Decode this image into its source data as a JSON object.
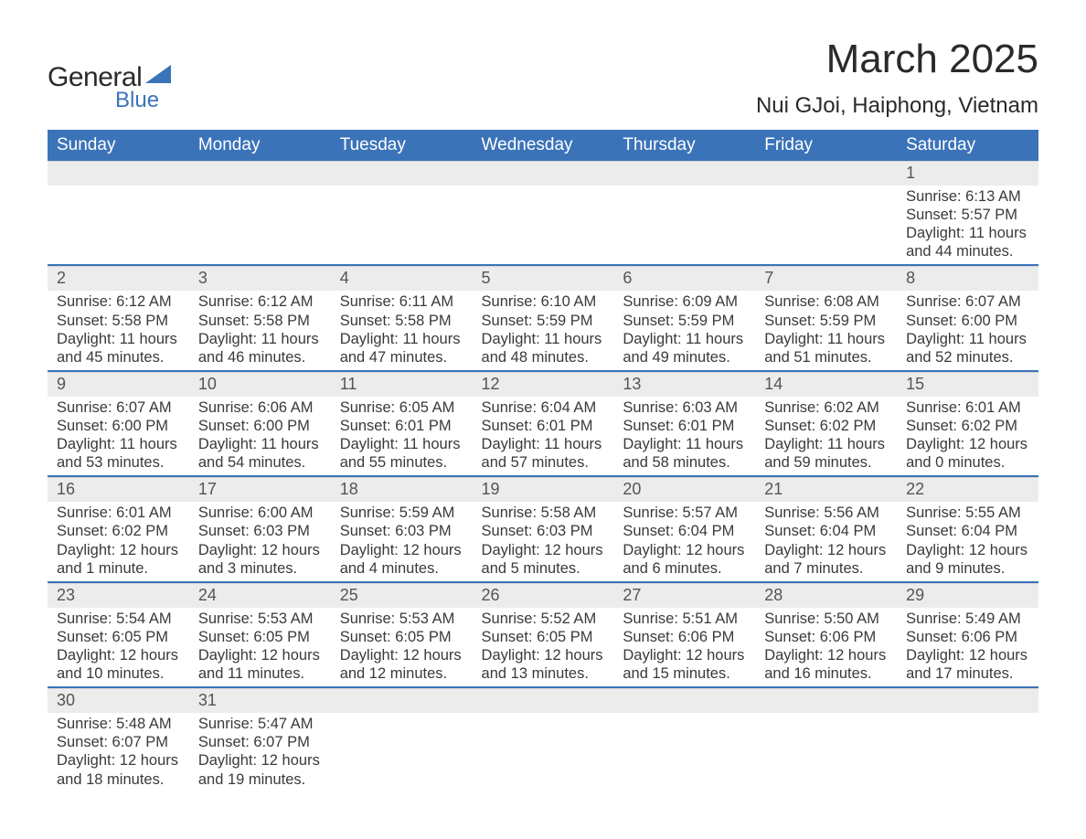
{
  "logo": {
    "text1": "General",
    "text2": "Blue",
    "accent_color": "#3b73b9"
  },
  "header": {
    "title": "March 2025",
    "location": "Nui GJoi, Haiphong, Vietnam"
  },
  "colors": {
    "header_bg": "#3b73b9",
    "header_text": "#ffffff",
    "daynum_bg": "#ececec",
    "row_border": "#3b73b9",
    "body_text": "#3a3a3a"
  },
  "weekdays": [
    "Sunday",
    "Monday",
    "Tuesday",
    "Wednesday",
    "Thursday",
    "Friday",
    "Saturday"
  ],
  "weeks": [
    [
      null,
      null,
      null,
      null,
      null,
      null,
      {
        "n": "1",
        "sunrise": "Sunrise: 6:13 AM",
        "sunset": "Sunset: 5:57 PM",
        "daylight": "Daylight: 11 hours and 44 minutes."
      }
    ],
    [
      {
        "n": "2",
        "sunrise": "Sunrise: 6:12 AM",
        "sunset": "Sunset: 5:58 PM",
        "daylight": "Daylight: 11 hours and 45 minutes."
      },
      {
        "n": "3",
        "sunrise": "Sunrise: 6:12 AM",
        "sunset": "Sunset: 5:58 PM",
        "daylight": "Daylight: 11 hours and 46 minutes."
      },
      {
        "n": "4",
        "sunrise": "Sunrise: 6:11 AM",
        "sunset": "Sunset: 5:58 PM",
        "daylight": "Daylight: 11 hours and 47 minutes."
      },
      {
        "n": "5",
        "sunrise": "Sunrise: 6:10 AM",
        "sunset": "Sunset: 5:59 PM",
        "daylight": "Daylight: 11 hours and 48 minutes."
      },
      {
        "n": "6",
        "sunrise": "Sunrise: 6:09 AM",
        "sunset": "Sunset: 5:59 PM",
        "daylight": "Daylight: 11 hours and 49 minutes."
      },
      {
        "n": "7",
        "sunrise": "Sunrise: 6:08 AM",
        "sunset": "Sunset: 5:59 PM",
        "daylight": "Daylight: 11 hours and 51 minutes."
      },
      {
        "n": "8",
        "sunrise": "Sunrise: 6:07 AM",
        "sunset": "Sunset: 6:00 PM",
        "daylight": "Daylight: 11 hours and 52 minutes."
      }
    ],
    [
      {
        "n": "9",
        "sunrise": "Sunrise: 6:07 AM",
        "sunset": "Sunset: 6:00 PM",
        "daylight": "Daylight: 11 hours and 53 minutes."
      },
      {
        "n": "10",
        "sunrise": "Sunrise: 6:06 AM",
        "sunset": "Sunset: 6:00 PM",
        "daylight": "Daylight: 11 hours and 54 minutes."
      },
      {
        "n": "11",
        "sunrise": "Sunrise: 6:05 AM",
        "sunset": "Sunset: 6:01 PM",
        "daylight": "Daylight: 11 hours and 55 minutes."
      },
      {
        "n": "12",
        "sunrise": "Sunrise: 6:04 AM",
        "sunset": "Sunset: 6:01 PM",
        "daylight": "Daylight: 11 hours and 57 minutes."
      },
      {
        "n": "13",
        "sunrise": "Sunrise: 6:03 AM",
        "sunset": "Sunset: 6:01 PM",
        "daylight": "Daylight: 11 hours and 58 minutes."
      },
      {
        "n": "14",
        "sunrise": "Sunrise: 6:02 AM",
        "sunset": "Sunset: 6:02 PM",
        "daylight": "Daylight: 11 hours and 59 minutes."
      },
      {
        "n": "15",
        "sunrise": "Sunrise: 6:01 AM",
        "sunset": "Sunset: 6:02 PM",
        "daylight": "Daylight: 12 hours and 0 minutes."
      }
    ],
    [
      {
        "n": "16",
        "sunrise": "Sunrise: 6:01 AM",
        "sunset": "Sunset: 6:02 PM",
        "daylight": "Daylight: 12 hours and 1 minute."
      },
      {
        "n": "17",
        "sunrise": "Sunrise: 6:00 AM",
        "sunset": "Sunset: 6:03 PM",
        "daylight": "Daylight: 12 hours and 3 minutes."
      },
      {
        "n": "18",
        "sunrise": "Sunrise: 5:59 AM",
        "sunset": "Sunset: 6:03 PM",
        "daylight": "Daylight: 12 hours and 4 minutes."
      },
      {
        "n": "19",
        "sunrise": "Sunrise: 5:58 AM",
        "sunset": "Sunset: 6:03 PM",
        "daylight": "Daylight: 12 hours and 5 minutes."
      },
      {
        "n": "20",
        "sunrise": "Sunrise: 5:57 AM",
        "sunset": "Sunset: 6:04 PM",
        "daylight": "Daylight: 12 hours and 6 minutes."
      },
      {
        "n": "21",
        "sunrise": "Sunrise: 5:56 AM",
        "sunset": "Sunset: 6:04 PM",
        "daylight": "Daylight: 12 hours and 7 minutes."
      },
      {
        "n": "22",
        "sunrise": "Sunrise: 5:55 AM",
        "sunset": "Sunset: 6:04 PM",
        "daylight": "Daylight: 12 hours and 9 minutes."
      }
    ],
    [
      {
        "n": "23",
        "sunrise": "Sunrise: 5:54 AM",
        "sunset": "Sunset: 6:05 PM",
        "daylight": "Daylight: 12 hours and 10 minutes."
      },
      {
        "n": "24",
        "sunrise": "Sunrise: 5:53 AM",
        "sunset": "Sunset: 6:05 PM",
        "daylight": "Daylight: 12 hours and 11 minutes."
      },
      {
        "n": "25",
        "sunrise": "Sunrise: 5:53 AM",
        "sunset": "Sunset: 6:05 PM",
        "daylight": "Daylight: 12 hours and 12 minutes."
      },
      {
        "n": "26",
        "sunrise": "Sunrise: 5:52 AM",
        "sunset": "Sunset: 6:05 PM",
        "daylight": "Daylight: 12 hours and 13 minutes."
      },
      {
        "n": "27",
        "sunrise": "Sunrise: 5:51 AM",
        "sunset": "Sunset: 6:06 PM",
        "daylight": "Daylight: 12 hours and 15 minutes."
      },
      {
        "n": "28",
        "sunrise": "Sunrise: 5:50 AM",
        "sunset": "Sunset: 6:06 PM",
        "daylight": "Daylight: 12 hours and 16 minutes."
      },
      {
        "n": "29",
        "sunrise": "Sunrise: 5:49 AM",
        "sunset": "Sunset: 6:06 PM",
        "daylight": "Daylight: 12 hours and 17 minutes."
      }
    ],
    [
      {
        "n": "30",
        "sunrise": "Sunrise: 5:48 AM",
        "sunset": "Sunset: 6:07 PM",
        "daylight": "Daylight: 12 hours and 18 minutes."
      },
      {
        "n": "31",
        "sunrise": "Sunrise: 5:47 AM",
        "sunset": "Sunset: 6:07 PM",
        "daylight": "Daylight: 12 hours and 19 minutes."
      },
      null,
      null,
      null,
      null,
      null
    ]
  ]
}
